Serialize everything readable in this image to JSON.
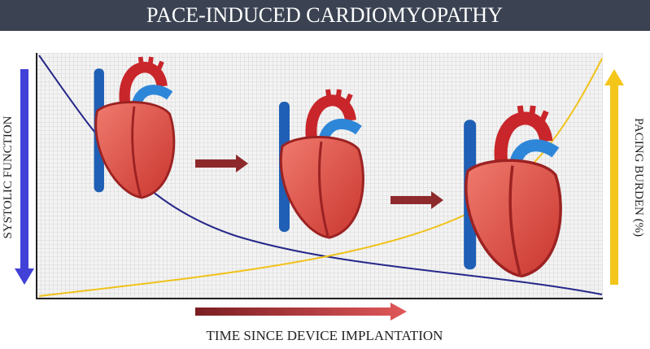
{
  "title": "PACE-INDUCED CARDIOMYOPATHY",
  "labels": {
    "left": "SYSTOLIC FUNCTION",
    "right": "PACING BURDEN (%)",
    "bottom": "TIME SINCE DEVICE IMPLANTATION"
  }
}
